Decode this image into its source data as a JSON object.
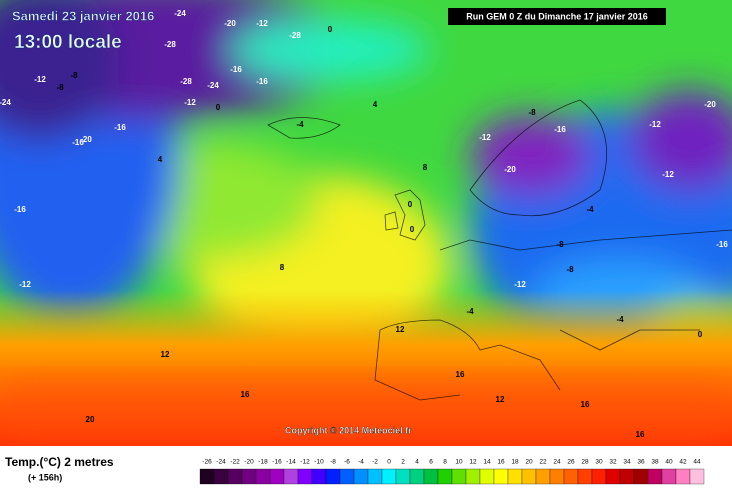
{
  "header": {
    "date": "Samedi 23 janvier 2016",
    "time": "13:00 locale",
    "run": "Run GEM 0 Z du Dimanche 17 janvier 2016"
  },
  "copyright": "Copyright © 2014 Meteociel.fr",
  "legend": {
    "title": "Temp.(°C) 2 metres",
    "lead": "(+ 156h)",
    "ticks": [
      -26,
      -24,
      -22,
      -20,
      -18,
      -16,
      -14,
      -12,
      -10,
      -8,
      -6,
      -4,
      -2,
      0,
      2,
      4,
      6,
      8,
      10,
      12,
      14,
      16,
      18,
      20,
      22,
      24,
      26,
      28,
      30,
      32,
      34,
      36,
      38,
      40,
      42,
      44
    ],
    "colors": [
      "#200020",
      "#3a0040",
      "#550060",
      "#700080",
      "#8a00a0",
      "#a000c0",
      "#b040e0",
      "#8000ff",
      "#4000ff",
      "#0020ff",
      "#0060ff",
      "#0090ff",
      "#00c0ff",
      "#00f0ff",
      "#00e0c0",
      "#00d080",
      "#00c040",
      "#20d000",
      "#60e000",
      "#a0f000",
      "#e0ff00",
      "#ffff00",
      "#ffe000",
      "#ffc000",
      "#ffa000",
      "#ff8000",
      "#ff6000",
      "#ff4000",
      "#ff2000",
      "#e00000",
      "#c00000",
      "#a00000",
      "#c00060",
      "#e040a0",
      "#ff80c0",
      "#ffc0e0"
    ]
  },
  "map_labels": [
    -24,
    -20,
    -12,
    -28,
    0,
    -28,
    -16,
    -28,
    -24,
    -16,
    -12,
    -8,
    -8,
    -24,
    -16,
    -20,
    -16,
    4,
    -12,
    0,
    -4,
    4,
    8,
    8,
    0,
    0,
    -8,
    -12,
    -20,
    -16,
    -12,
    -20,
    -12,
    -16,
    -8,
    -4,
    -12,
    -8,
    -4,
    12,
    12,
    16,
    20,
    16,
    12,
    16,
    16,
    -16,
    -12,
    -4,
    0
  ]
}
